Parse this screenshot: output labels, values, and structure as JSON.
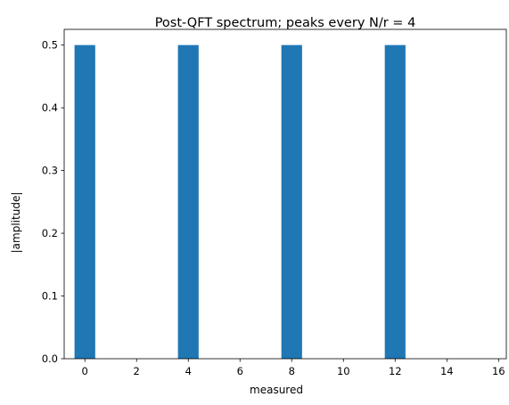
{
  "chart_data": {
    "type": "bar",
    "title": "Post-QFT spectrum; peaks every N/r = 4",
    "xlabel": "measured",
    "ylabel": "|amplitude|",
    "x": [
      0,
      1,
      2,
      3,
      4,
      5,
      6,
      7,
      8,
      9,
      10,
      11,
      12,
      13,
      14,
      15
    ],
    "values": [
      0.5,
      0,
      0,
      0,
      0.5,
      0,
      0,
      0,
      0.5,
      0,
      0,
      0,
      0.5,
      0,
      0,
      0
    ],
    "xlim": [
      -0.8,
      16.3
    ],
    "ylim": [
      0,
      0.525
    ],
    "xticks": [
      "0",
      "2",
      "4",
      "6",
      "8",
      "10",
      "12",
      "14",
      "16"
    ],
    "yticks": [
      "0.0",
      "0.1",
      "0.2",
      "0.3",
      "0.4",
      "0.5"
    ],
    "bar_color": "#1f77b4",
    "grid": false,
    "legend": "none"
  }
}
